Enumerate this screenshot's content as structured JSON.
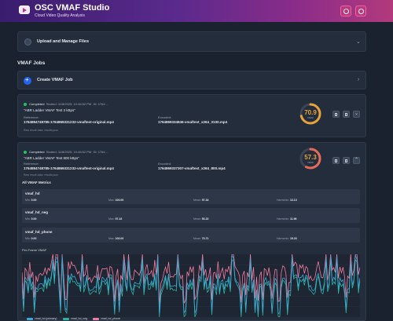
{
  "header": {
    "title": "OSC VMAF Studio",
    "subtitle": "Cloud Video Quality Analysis",
    "gradient_start": "#3a1d6e",
    "gradient_end": "#b23a7c"
  },
  "upload": {
    "label": "Upload and Manage Files"
  },
  "jobs_section": {
    "title": "VMAF Jobs"
  },
  "create": {
    "label": "Create VMAF Job"
  },
  "jobs": [
    {
      "status": "Completed",
      "started": "Started: 11/8/2025, 10:46:52 PM",
      "id": "ID: 1764...",
      "name": "\"ABR Ladder VMAF Test 3 kBps\"",
      "reference_label": "Reference:",
      "reference_value": "1764884748785-1764869331232-vmaftest-original.mp4",
      "encoded_label": "Encoded:",
      "encoded_value": "1764869334846-vmaftest_x264_3100.mp4",
      "raw_label": "Raw result data:",
      "raw_value": "results.json",
      "score": "70.9",
      "score_fraction": 0.709,
      "score_caption": "VMAF"
    },
    {
      "status": "Completed",
      "started": "Started: 11/8/2025, 10:46:52 PM",
      "id": "ID: 1764...",
      "name": "\"ABR Ladder VMAF Test 800 kBps\"",
      "reference_label": "Reference:",
      "reference_value": "1764884748785-1764869331232-vmaftest-original.mp4",
      "encoded_label": "Encoded:",
      "encoded_value": "1764869337307-vmaftest_x264_800.mp4",
      "raw_label": "Raw result data:",
      "raw_value": "results.json",
      "score": "57.3",
      "score_fraction": 0.573,
      "score_caption": "VMAF"
    }
  ],
  "metrics_title": "All VMAF Metrics",
  "metrics": [
    {
      "name": "vmaf_hd",
      "min": "0.00",
      "max": "100.00",
      "mean": "57.34",
      "harmonic": "13.13"
    },
    {
      "name": "vmaf_hd_neg",
      "min": "0.00",
      "max": "97.42",
      "mean": "53.22",
      "harmonic": "11.96"
    },
    {
      "name": "vmaf_hd_phone",
      "min": "0.00",
      "max": "100.00",
      "mean": "73.71",
      "harmonic": "15.33"
    }
  ],
  "labels": {
    "min": "Min:",
    "max": "Max:",
    "mean": "Mean:",
    "harmonic": "Harmonic:"
  },
  "chart_title": "Per-Frame VMAF",
  "chart_data": {
    "type": "line",
    "ylim": [
      0,
      100
    ],
    "series": [
      {
        "name": "vmaf_hd (primary)",
        "color": "#3fa7d6"
      },
      {
        "name": "vmaf_hd_neg",
        "color": "#2bb3a0"
      },
      {
        "name": "vmaf_hd_phone",
        "color": "#f07ca0"
      }
    ]
  },
  "colors": {
    "card": "#242d3b",
    "accent_blue": "#2563eb",
    "gauge_high": "#e8a23a",
    "gauge_low": "#e86a5a",
    "status_green": "#22c55e"
  }
}
